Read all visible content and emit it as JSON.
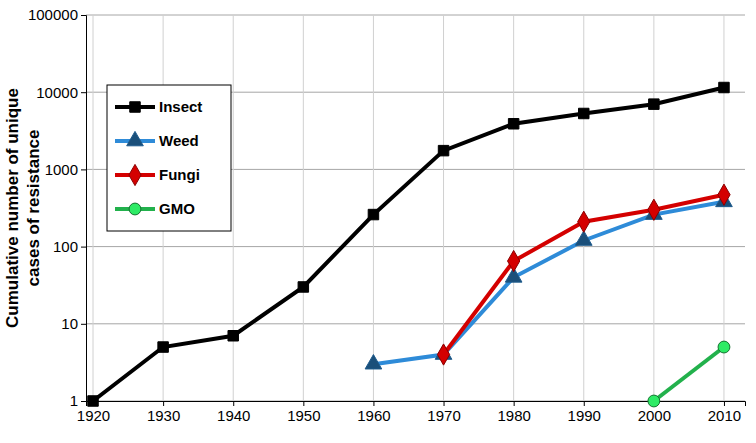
{
  "chart_data": {
    "type": "line",
    "y_label": "Cumulative number of unique\ncases of resistance",
    "x": [
      1920,
      1930,
      1940,
      1950,
      1960,
      1970,
      1980,
      1990,
      2000,
      2010
    ],
    "xlim": [
      1919,
      2013
    ],
    "xticks": [
      1920,
      1930,
      1940,
      1950,
      1960,
      1970,
      1980,
      1990,
      2000,
      2010
    ],
    "ylim": [
      1,
      100000
    ],
    "yticks": [
      1,
      10,
      100,
      1000,
      10000,
      100000
    ],
    "log": "y",
    "grid": true,
    "legend": "upper left",
    "series": [
      {
        "name": "Insect",
        "color": "#000000",
        "marker": "square",
        "line_style": "solid",
        "values": [
          1,
          5,
          7,
          30,
          260,
          1750,
          3900,
          5300,
          7000,
          11500
        ]
      },
      {
        "name": "Weed",
        "color": "#2e8bd8",
        "marker": "triangle",
        "line_style": "solid",
        "values": [
          null,
          null,
          null,
          null,
          3,
          4,
          40,
          120,
          260,
          380
        ]
      },
      {
        "name": "Fungi",
        "color": "#d40000",
        "marker": "diamond",
        "line_style": "solid",
        "values": [
          null,
          null,
          null,
          null,
          null,
          4,
          65,
          210,
          300,
          470
        ]
      },
      {
        "name": "GMO",
        "color": "#22b14c",
        "marker": "circle",
        "line_style": "solid",
        "values": [
          null,
          null,
          null,
          null,
          null,
          null,
          null,
          null,
          1,
          5
        ]
      }
    ]
  }
}
